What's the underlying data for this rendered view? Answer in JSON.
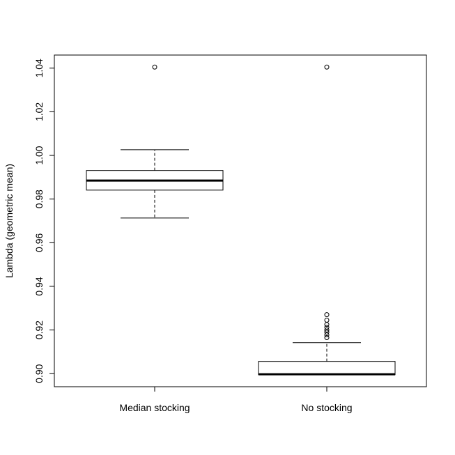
{
  "chart_data": {
    "type": "boxplot",
    "title": "",
    "xlabel": "",
    "ylabel": "Lambda (geometric mean)",
    "ylim": [
      0.894,
      1.046
    ],
    "y_ticks": [
      0.9,
      0.92,
      0.94,
      0.96,
      0.98,
      1.0,
      1.02,
      1.04
    ],
    "y_tick_labels": [
      "0.90",
      "0.92",
      "0.94",
      "0.96",
      "0.98",
      "1.00",
      "1.02",
      "1.04"
    ],
    "categories": [
      "Median stocking",
      "No stocking"
    ],
    "boxes": [
      {
        "category": "Median stocking",
        "whisker_low": 0.9713,
        "q1": 0.9841,
        "median": 0.9885,
        "q3": 0.9931,
        "whisker_high": 1.0026,
        "outliers": [
          1.0405
        ]
      },
      {
        "category": "No stocking",
        "whisker_low": 0.8995,
        "q1": 0.8995,
        "median": 0.8997,
        "q3": 0.9056,
        "whisker_high": 0.9142,
        "outliers": [
          0.9165,
          0.9178,
          0.919,
          0.92,
          0.9212,
          0.9225,
          0.9245,
          0.927,
          1.0405
        ]
      }
    ],
    "grid": false,
    "legend": "none"
  }
}
